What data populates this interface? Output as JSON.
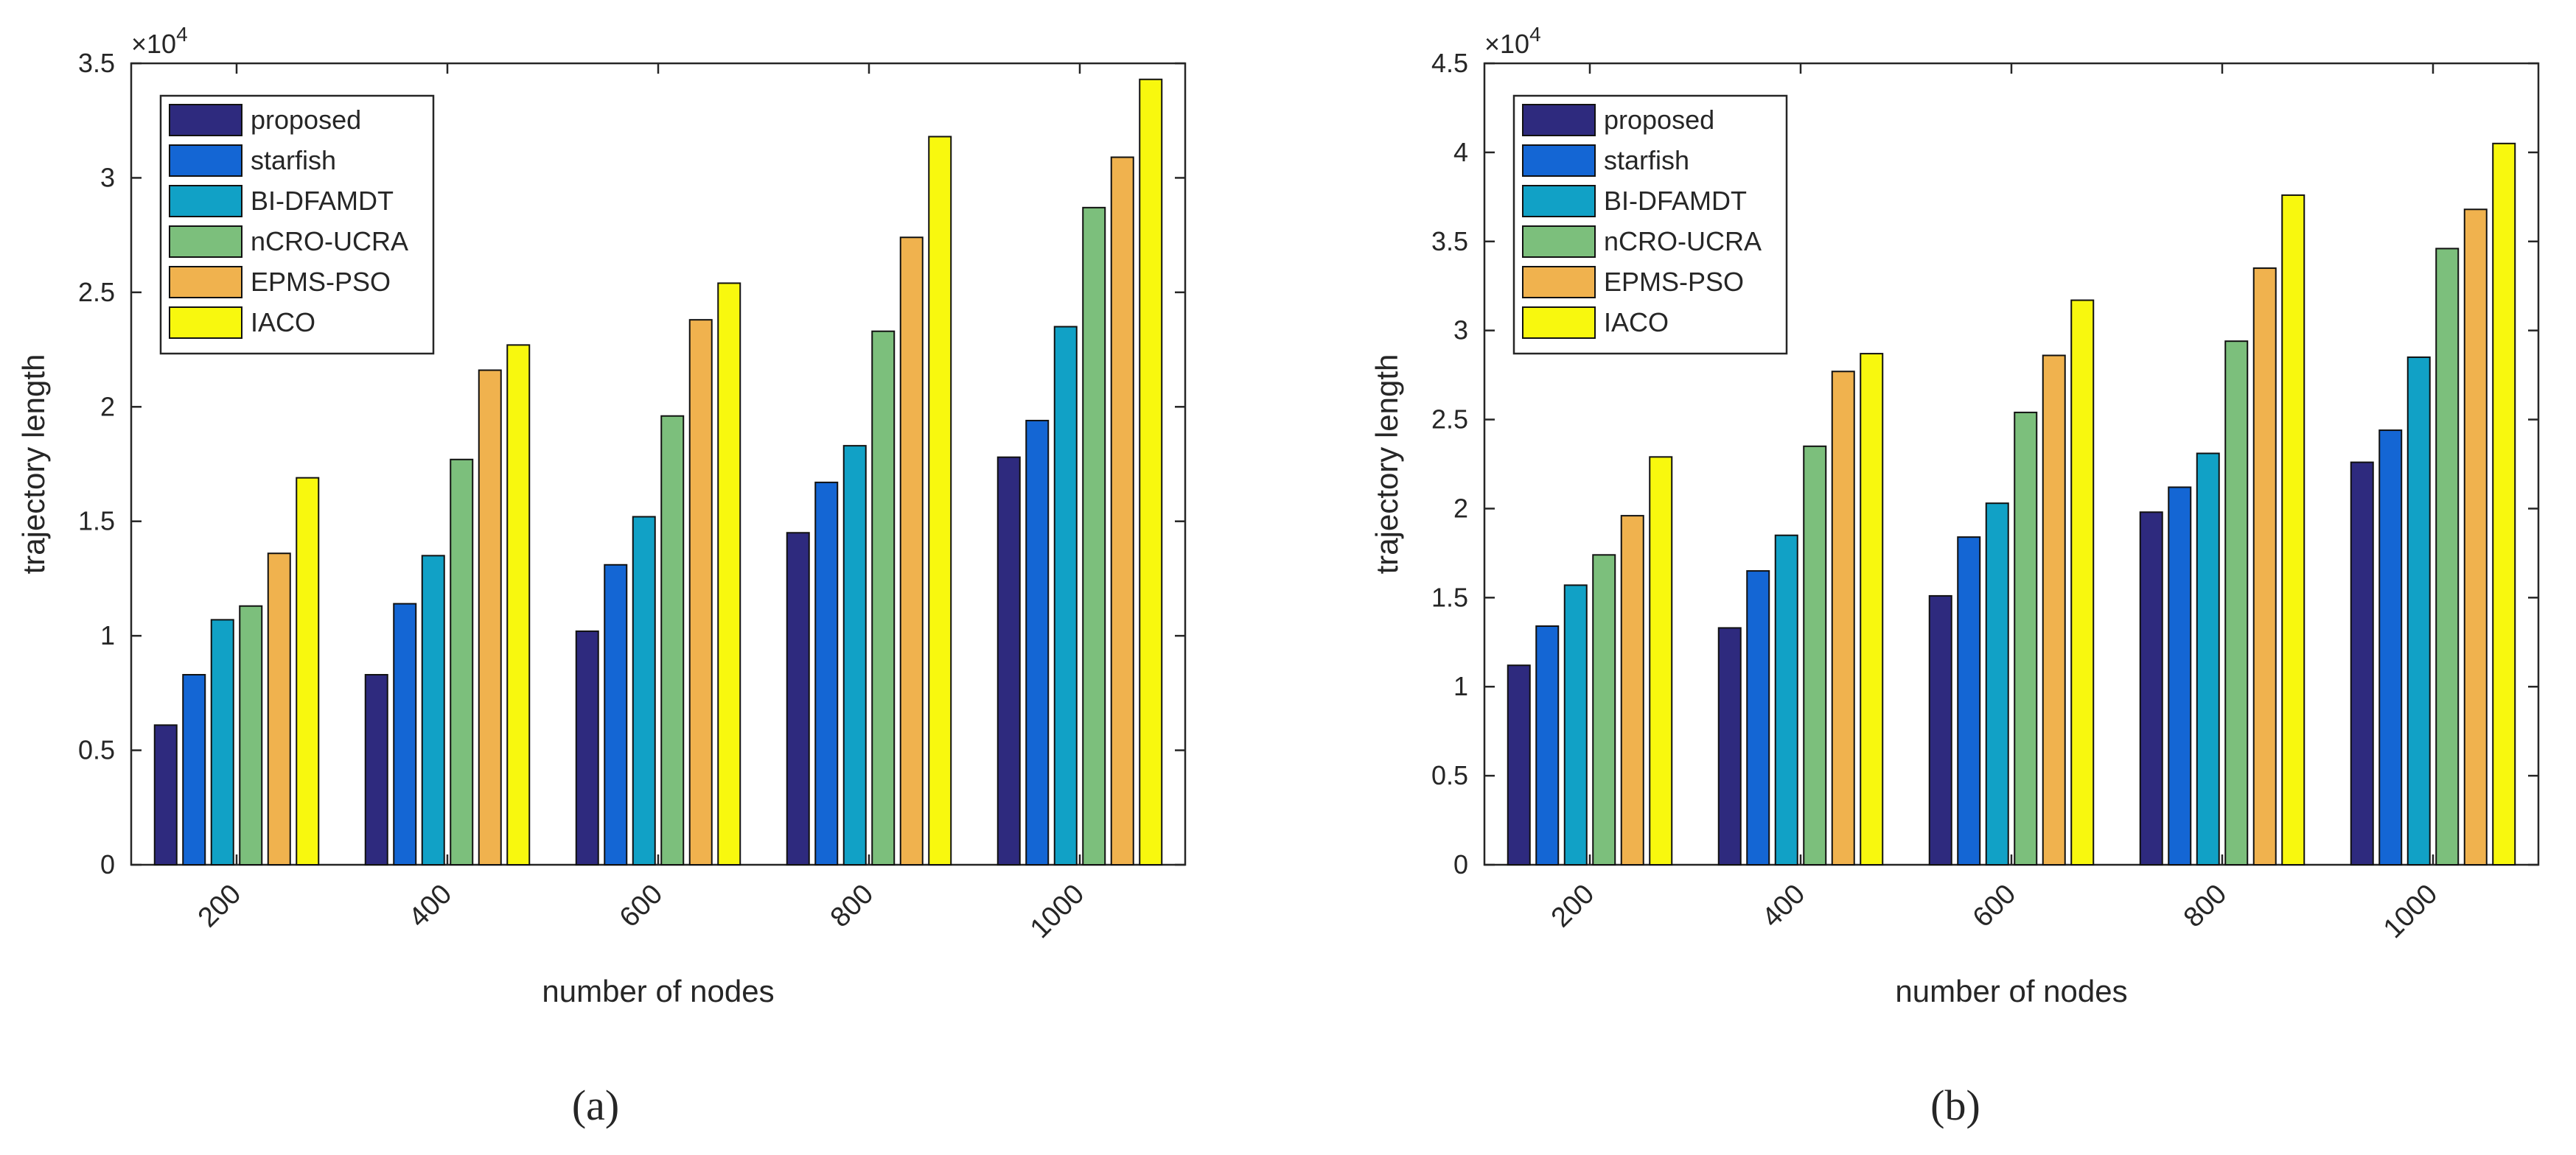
{
  "chart_data": [
    {
      "type": "bar",
      "panel_label": "(a)",
      "xlabel": "number of nodes",
      "ylabel": "trajectory length",
      "exponent_prefix": "×10",
      "exponent_power": "4",
      "ylim": [
        0,
        3.5
      ],
      "yticks": [
        "0",
        "0.5",
        "1",
        "1.5",
        "2",
        "2.5",
        "3",
        "3.5"
      ],
      "categories": [
        "200",
        "400",
        "600",
        "800",
        "1000"
      ],
      "legend_position": "top-left",
      "series": [
        {
          "name": "proposed",
          "color": "#2e2a7e",
          "values": [
            0.61,
            0.83,
            1.02,
            1.45,
            1.78
          ]
        },
        {
          "name": "starfish",
          "color": "#1466d4",
          "values": [
            0.83,
            1.14,
            1.31,
            1.67,
            1.94
          ]
        },
        {
          "name": "BI-DFAMDT",
          "color": "#11a1c6",
          "values": [
            1.07,
            1.35,
            1.52,
            1.83,
            2.35
          ]
        },
        {
          "name": "nCRO-UCRA",
          "color": "#7cbf7c",
          "values": [
            1.13,
            1.77,
            1.96,
            2.33,
            2.87
          ]
        },
        {
          "name": "EPMS-PSO",
          "color": "#f0b24e",
          "values": [
            1.36,
            2.16,
            2.38,
            2.74,
            3.09
          ]
        },
        {
          "name": "IACO",
          "color": "#f8f80e",
          "values": [
            1.69,
            2.27,
            2.54,
            3.18,
            3.43
          ]
        }
      ]
    },
    {
      "type": "bar",
      "panel_label": "(b)",
      "xlabel": "number of nodes",
      "ylabel": "trajectory length",
      "exponent_prefix": "×10",
      "exponent_power": "4",
      "ylim": [
        0,
        4.5
      ],
      "yticks": [
        "0",
        "0.5",
        "1",
        "1.5",
        "2",
        "2.5",
        "3",
        "3.5",
        "4",
        "4.5"
      ],
      "categories": [
        "200",
        "400",
        "600",
        "800",
        "1000"
      ],
      "legend_position": "top-left",
      "series": [
        {
          "name": "proposed",
          "color": "#2e2a7e",
          "values": [
            1.12,
            1.33,
            1.51,
            1.98,
            2.26
          ]
        },
        {
          "name": "starfish",
          "color": "#1466d4",
          "values": [
            1.34,
            1.65,
            1.84,
            2.12,
            2.44
          ]
        },
        {
          "name": "BI-DFAMDT",
          "color": "#11a1c6",
          "values": [
            1.57,
            1.85,
            2.03,
            2.31,
            2.85
          ]
        },
        {
          "name": "nCRO-UCRA",
          "color": "#7cbf7c",
          "values": [
            1.74,
            2.35,
            2.54,
            2.94,
            3.46
          ]
        },
        {
          "name": "EPMS-PSO",
          "color": "#f0b24e",
          "values": [
            1.96,
            2.77,
            2.86,
            3.35,
            3.68
          ]
        },
        {
          "name": "IACO",
          "color": "#f8f80e",
          "values": [
            2.29,
            2.87,
            3.17,
            3.76,
            4.05
          ]
        }
      ]
    }
  ]
}
